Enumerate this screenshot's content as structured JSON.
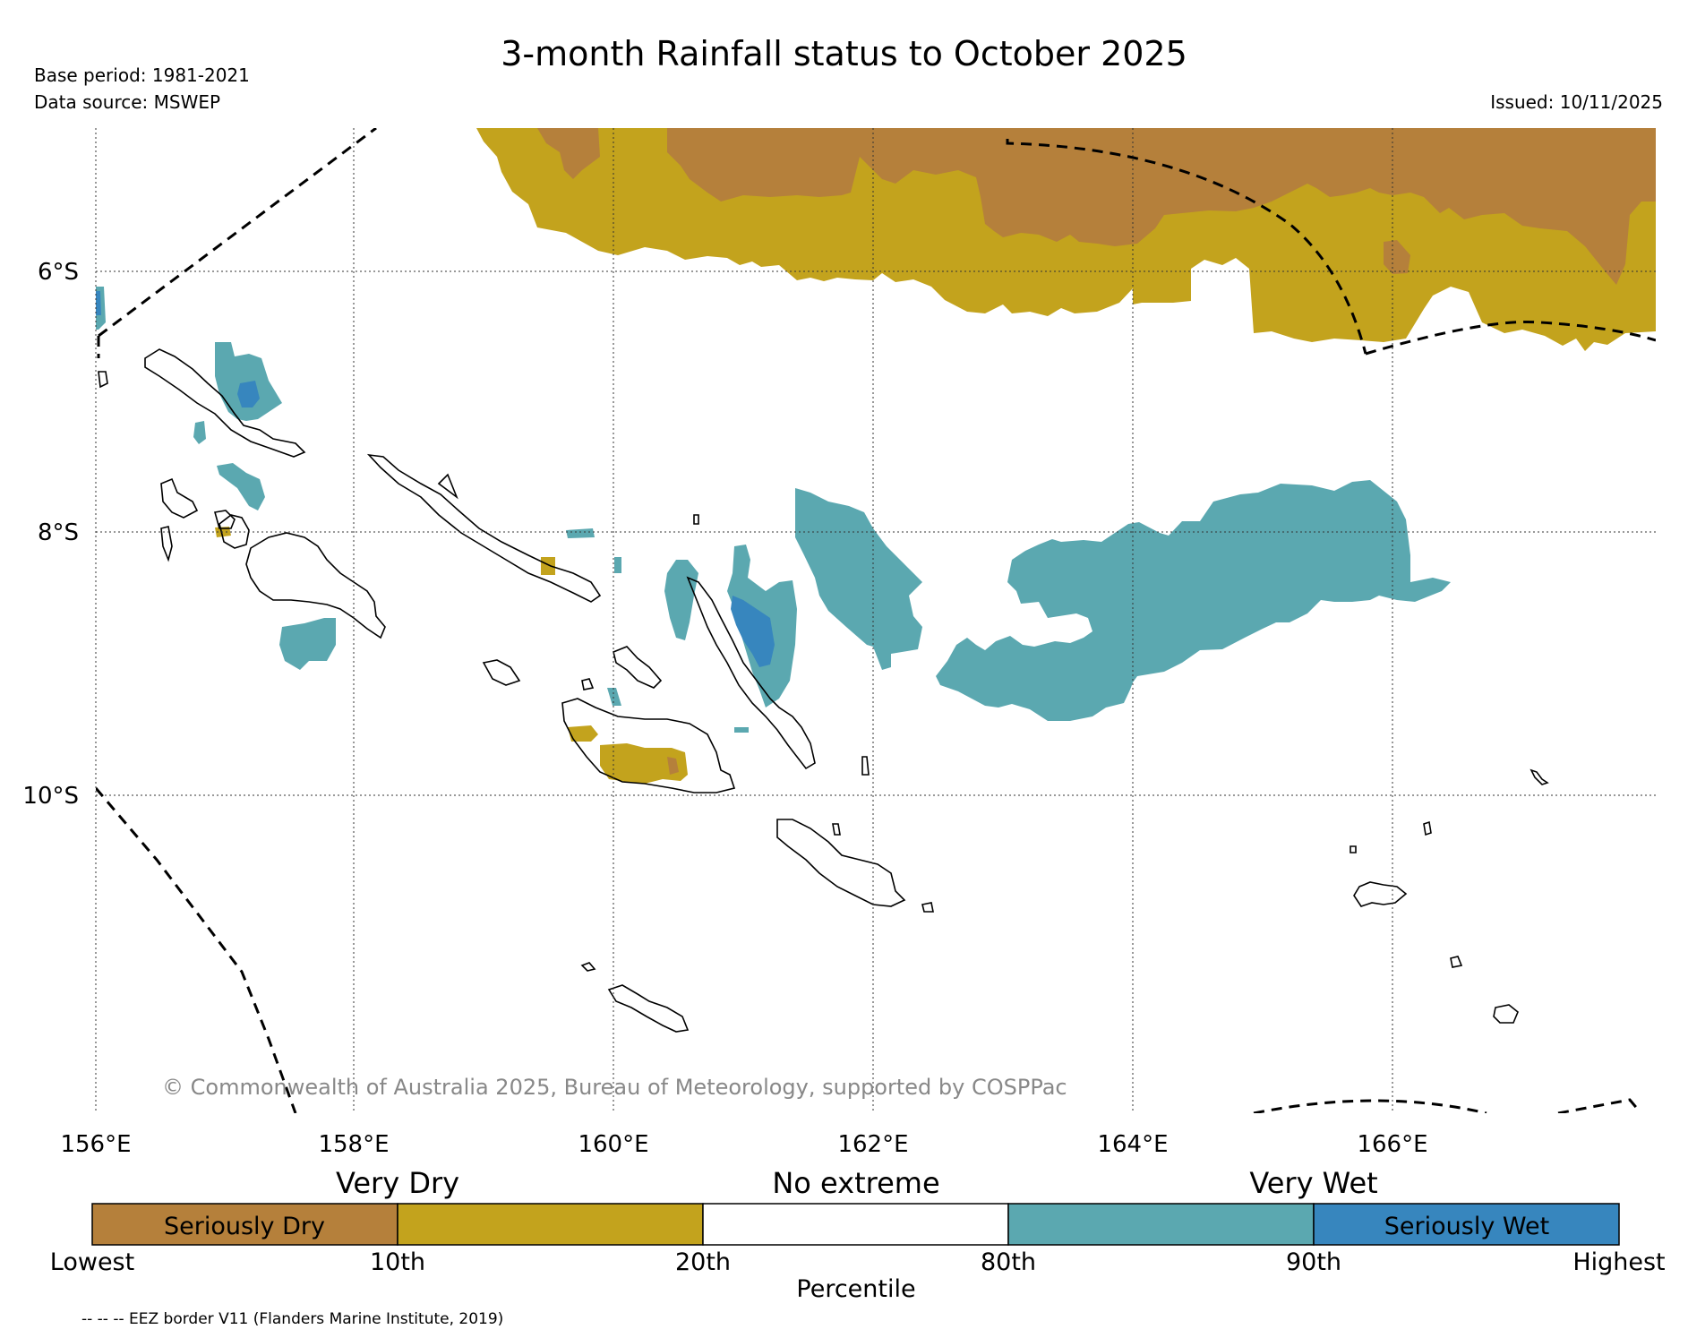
{
  "title": "3-month Rainfall status to October 2025",
  "base_period": "Base period: 1981-2021",
  "data_source": "Data source: MSWEP",
  "issued": "Issued: 10/11/2025",
  "copyright": "© Commonwealth of Australia 2025, Bureau of Meteorology, supported by COSPPac",
  "eez_note": "-- -- -- EEZ border V11 (Flanders Marine Institute, 2019)",
  "axes": {
    "lat_labels": [
      "6°S",
      "8°S",
      "10°S"
    ],
    "lon_labels": [
      "156°E",
      "158°E",
      "160°E",
      "162°E",
      "164°E",
      "166°E"
    ]
  },
  "legend": {
    "headers": [
      "Very Dry",
      "No extreme",
      "Very Wet"
    ],
    "segments": [
      {
        "label": "Seriously Dry",
        "color": "#b5803b"
      },
      {
        "label": "",
        "color": "#c3a31d"
      },
      {
        "label": "",
        "color": "#ffffff"
      },
      {
        "label": "",
        "color": "#5ba8b0"
      },
      {
        "label": "Seriously Wet",
        "color": "#3786be"
      }
    ],
    "percentiles": [
      "Lowest",
      "10th",
      "20th",
      "80th",
      "90th",
      "Highest"
    ],
    "axis_title": "Percentile"
  },
  "colors": {
    "seriously_dry": "#b5803b",
    "very_dry": "#c3a31d",
    "very_wet": "#5ba8b0",
    "seriously_wet": "#3786be"
  }
}
